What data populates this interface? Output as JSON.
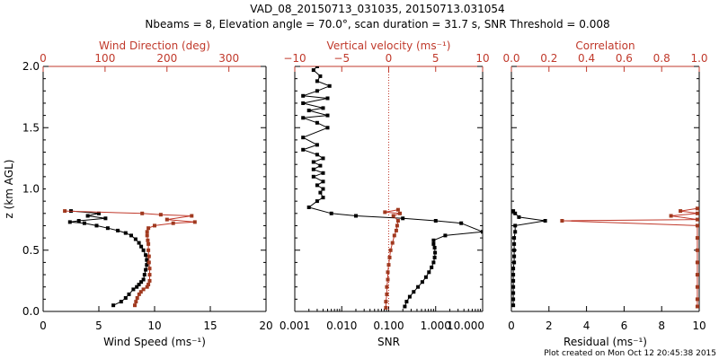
{
  "title_line1": "VAD_08_20150713_031035, 20150713.031054",
  "title_line2": "Nbeams = 8, Elevation angle = 70.0°, scan duration = 31.7 s, SNR Threshold = 0.008",
  "footer": "Plot created on Mon Oct 12 20:45:38 2015",
  "colors": {
    "black": "#000000",
    "red": "#c0392b",
    "marker_black": "#000000",
    "marker_red": "#a0391f"
  },
  "chart_data": [
    {
      "type": "line",
      "ylabel": "z (km AGL)",
      "ylim": [
        0,
        2
      ],
      "y_ticks": [
        "0.0",
        "0.5",
        "1.0",
        "1.5",
        "2.0"
      ],
      "bottom_axis": {
        "label": "Wind Speed (ms⁻¹)",
        "range": [
          0,
          20
        ],
        "ticks": [
          "0",
          "5",
          "10",
          "15",
          "20"
        ]
      },
      "top_axis": {
        "label": "Wind Direction (deg)",
        "range": [
          0,
          360
        ],
        "ticks": [
          "0",
          "100",
          "200",
          "300"
        ]
      },
      "series": [
        {
          "axis": "bottom",
          "color": "#000000",
          "points": [
            [
              6.3,
              0.05
            ],
            [
              7.0,
              0.08
            ],
            [
              7.4,
              0.11
            ],
            [
              7.7,
              0.14
            ],
            [
              8.1,
              0.18
            ],
            [
              8.4,
              0.2
            ],
            [
              8.6,
              0.22
            ],
            [
              8.8,
              0.24
            ],
            [
              9.0,
              0.26
            ],
            [
              9.1,
              0.3
            ],
            [
              9.2,
              0.34
            ],
            [
              9.3,
              0.38
            ],
            [
              9.3,
              0.42
            ],
            [
              9.2,
              0.46
            ],
            [
              9.0,
              0.5
            ],
            [
              8.8,
              0.53
            ],
            [
              8.6,
              0.56
            ],
            [
              8.3,
              0.59
            ],
            [
              7.9,
              0.62
            ],
            [
              7.4,
              0.64
            ],
            [
              6.7,
              0.66
            ],
            [
              5.8,
              0.68
            ],
            [
              4.8,
              0.7
            ],
            [
              3.7,
              0.72
            ],
            [
              2.4,
              0.73
            ],
            [
              3.2,
              0.74
            ],
            [
              5.6,
              0.76
            ],
            [
              4.0,
              0.78
            ],
            [
              5.0,
              0.8
            ],
            [
              2.5,
              0.82
            ]
          ]
        },
        {
          "axis": "top",
          "color": "#c0392b",
          "points": [
            [
              148,
              0.05
            ],
            [
              150,
              0.08
            ],
            [
              152,
              0.11
            ],
            [
              155,
              0.14
            ],
            [
              158,
              0.16
            ],
            [
              162,
              0.18
            ],
            [
              168,
              0.2
            ],
            [
              170,
              0.22
            ],
            [
              172,
              0.25
            ],
            [
              172,
              0.3
            ],
            [
              172,
              0.35
            ],
            [
              171,
              0.4
            ],
            [
              171,
              0.45
            ],
            [
              170,
              0.5
            ],
            [
              170,
              0.55
            ],
            [
              169,
              0.58
            ],
            [
              168,
              0.62
            ],
            [
              168,
              0.65
            ],
            [
              170,
              0.68
            ],
            [
              180,
              0.7
            ],
            [
              210,
              0.72
            ],
            [
              245,
              0.73
            ],
            [
              200,
              0.75
            ],
            [
              240,
              0.78
            ],
            [
              190,
              0.79
            ],
            [
              160,
              0.8
            ],
            [
              35,
              0.82
            ]
          ]
        }
      ]
    },
    {
      "type": "line",
      "ylim": [
        0,
        2
      ],
      "bottom_axis": {
        "label": "SNR",
        "scale": "log",
        "range": [
          0.001,
          10
        ],
        "ticks": [
          "0.001",
          "0.010",
          "0.100",
          "1.000",
          "10.000"
        ]
      },
      "top_axis": {
        "label": "Vertical velocity (ms⁻¹)",
        "range": [
          -10,
          10
        ],
        "ticks": [
          "−10",
          "−5",
          "0",
          "5",
          "10"
        ],
        "zero_line": "dotted"
      },
      "series": [
        {
          "axis": "bottom",
          "color": "#000000",
          "points": [
            [
              0.22,
              0.04
            ],
            [
              0.24,
              0.08
            ],
            [
              0.28,
              0.12
            ],
            [
              0.34,
              0.16
            ],
            [
              0.42,
              0.2
            ],
            [
              0.52,
              0.24
            ],
            [
              0.62,
              0.28
            ],
            [
              0.72,
              0.32
            ],
            [
              0.82,
              0.36
            ],
            [
              0.9,
              0.4
            ],
            [
              0.95,
              0.44
            ],
            [
              0.97,
              0.48
            ],
            [
              0.95,
              0.52
            ],
            [
              0.9,
              0.55
            ],
            [
              0.9,
              0.58
            ],
            [
              1.6,
              0.62
            ],
            [
              10,
              0.65
            ],
            [
              3.5,
              0.72
            ],
            [
              1.0,
              0.74
            ],
            [
              0.2,
              0.76
            ],
            [
              0.02,
              0.78
            ],
            [
              0.006,
              0.8
            ],
            [
              0.002,
              0.85
            ],
            [
              0.003,
              0.9
            ],
            [
              0.004,
              0.93
            ],
            [
              0.0035,
              0.97
            ],
            [
              0.004,
              1.0
            ],
            [
              0.003,
              1.03
            ],
            [
              0.004,
              1.06
            ],
            [
              0.0025,
              1.1
            ],
            [
              0.004,
              1.13
            ],
            [
              0.0025,
              1.16
            ],
            [
              0.0035,
              1.19
            ],
            [
              0.0025,
              1.22
            ],
            [
              0.004,
              1.25
            ],
            [
              0.003,
              1.28
            ],
            [
              0.0015,
              1.32
            ],
            [
              0.003,
              1.36
            ],
            [
              0.0015,
              1.42
            ],
            [
              0.005,
              1.5
            ],
            [
              0.003,
              1.54
            ],
            [
              0.0015,
              1.58
            ],
            [
              0.005,
              1.6
            ],
            [
              0.002,
              1.64
            ],
            [
              0.004,
              1.66
            ],
            [
              0.0015,
              1.7
            ],
            [
              0.005,
              1.74
            ],
            [
              0.0015,
              1.76
            ],
            [
              0.003,
              1.8
            ],
            [
              0.0055,
              1.84
            ],
            [
              0.003,
              1.88
            ],
            [
              0.0035,
              1.92
            ],
            [
              0.0025,
              1.97
            ],
            [
              0.003,
              2.0
            ]
          ]
        },
        {
          "axis": "top",
          "color": "#c0392b",
          "points": [
            [
              -0.3,
              0.03
            ],
            [
              -0.3,
              0.08
            ],
            [
              -0.2,
              0.14
            ],
            [
              -0.2,
              0.2
            ],
            [
              -0.1,
              0.26
            ],
            [
              -0.1,
              0.32
            ],
            [
              0.0,
              0.38
            ],
            [
              0.1,
              0.44
            ],
            [
              0.2,
              0.5
            ],
            [
              0.4,
              0.56
            ],
            [
              0.6,
              0.62
            ],
            [
              0.8,
              0.66
            ],
            [
              0.9,
              0.7
            ],
            [
              1.0,
              0.74
            ],
            [
              0.5,
              0.78
            ],
            [
              1.2,
              0.8
            ],
            [
              -0.4,
              0.81
            ],
            [
              1.0,
              0.83
            ]
          ]
        }
      ]
    },
    {
      "type": "line",
      "ylim": [
        0,
        2
      ],
      "bottom_axis": {
        "label": "Residual (ms⁻¹)",
        "range": [
          0,
          10
        ],
        "ticks": [
          "0",
          "2",
          "4",
          "6",
          "8",
          "10"
        ]
      },
      "top_axis": {
        "label": "Correlation",
        "range": [
          0,
          1
        ],
        "ticks": [
          "0.0",
          "0.2",
          "0.4",
          "0.6",
          "0.8",
          "1.0"
        ]
      },
      "series": [
        {
          "axis": "bottom",
          "color": "#000000",
          "points": [
            [
              0.1,
              0.05
            ],
            [
              0.1,
              0.1
            ],
            [
              0.1,
              0.15
            ],
            [
              0.1,
              0.2
            ],
            [
              0.1,
              0.25
            ],
            [
              0.1,
              0.3
            ],
            [
              0.1,
              0.35
            ],
            [
              0.15,
              0.4
            ],
            [
              0.15,
              0.45
            ],
            [
              0.15,
              0.5
            ],
            [
              0.15,
              0.55
            ],
            [
              0.15,
              0.6
            ],
            [
              0.2,
              0.65
            ],
            [
              0.2,
              0.7
            ],
            [
              1.8,
              0.74
            ],
            [
              0.4,
              0.77
            ],
            [
              0.2,
              0.8
            ],
            [
              0.1,
              0.82
            ]
          ]
        },
        {
          "axis": "top",
          "color": "#c0392b",
          "points": [
            [
              0.99,
              0.04
            ],
            [
              0.99,
              0.1
            ],
            [
              0.99,
              0.2
            ],
            [
              0.99,
              0.3
            ],
            [
              0.99,
              0.4
            ],
            [
              0.99,
              0.5
            ],
            [
              0.99,
              0.6
            ],
            [
              0.99,
              0.7
            ],
            [
              0.27,
              0.74
            ],
            [
              0.99,
              0.75
            ],
            [
              0.85,
              0.78
            ],
            [
              0.99,
              0.8
            ],
            [
              0.9,
              0.82
            ],
            [
              0.99,
              0.84
            ]
          ]
        }
      ]
    }
  ]
}
